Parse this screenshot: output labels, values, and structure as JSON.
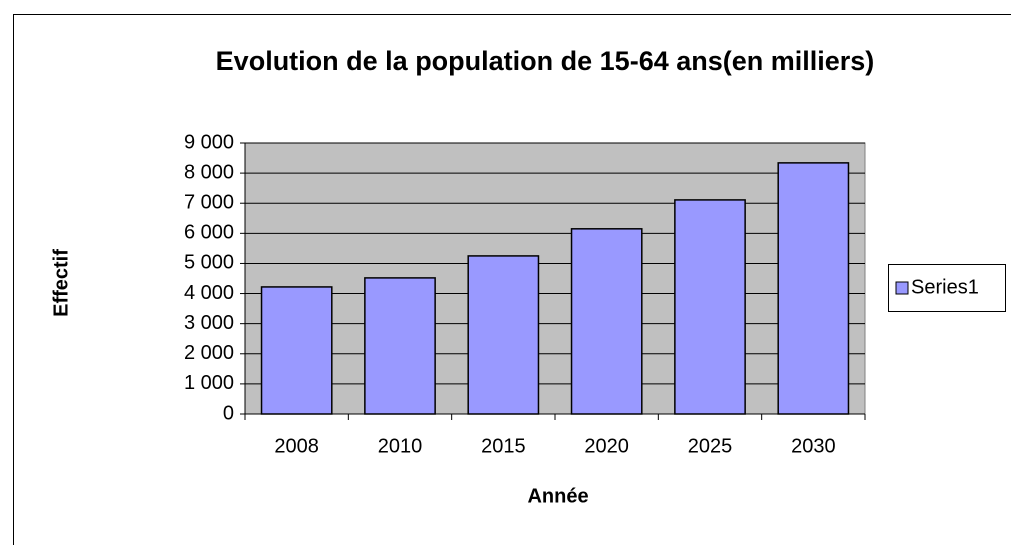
{
  "chart_data": {
    "type": "bar",
    "title": "Evolution de la population de 15-64 ans(en milliers)",
    "x_label": "Année",
    "y_label": "Effectif",
    "categories": [
      "2008",
      "2010",
      "2015",
      "2020",
      "2025",
      "2030"
    ],
    "series": [
      {
        "name": "Series1",
        "color": "#9999ff",
        "values": [
          4220,
          4520,
          5250,
          6150,
          7110,
          8340
        ]
      }
    ],
    "ylim": [
      0,
      9000
    ],
    "yticks": [
      0,
      {
        "value": 1000,
        "label": "1 000"
      },
      {
        "value": 2000,
        "label": "2 000"
      },
      {
        "value": 3000,
        "label": "3 000"
      },
      {
        "value": 4000,
        "label": "4 000"
      },
      {
        "value": 5000,
        "label": "5 000"
      },
      {
        "value": 6000,
        "label": "6 000"
      },
      {
        "value": 7000,
        "label": "7 000"
      },
      {
        "value": 8000,
        "label": "8 000"
      },
      {
        "value": 9000,
        "label": "9 000"
      }
    ],
    "grid": true,
    "legend": "right"
  }
}
